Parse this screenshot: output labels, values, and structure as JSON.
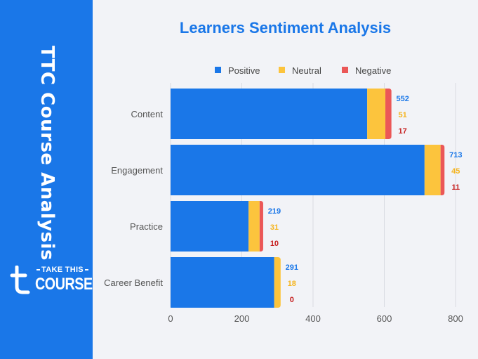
{
  "sidebar": {
    "title": "TTC Course Analysis",
    "logo_take": "TAKE THIS",
    "logo_course": "COURSE",
    "bg_color": "#1a77e8"
  },
  "chart_data": {
    "type": "bar",
    "orientation": "horizontal",
    "stacked": true,
    "title": "Learners Sentiment Analysis",
    "xlabel": "",
    "ylabel": "",
    "categories": [
      "Content",
      "Engagement",
      "Practice",
      "Career Benefit"
    ],
    "series": [
      {
        "name": "Positive",
        "values": [
          552,
          713,
          219,
          291
        ],
        "color": "#1a77e8",
        "label_color": "#1a77e8"
      },
      {
        "name": "Neutral",
        "values": [
          51,
          45,
          31,
          18
        ],
        "color": "#fcc43d",
        "label_color": "#f5b520"
      },
      {
        "name": "Negative",
        "values": [
          17,
          11,
          10,
          0
        ],
        "color": "#eb5757",
        "label_color": "#c62020"
      }
    ],
    "xlim": [
      0,
      800
    ],
    "xticks": [
      0,
      200,
      400,
      600,
      800
    ],
    "grid": true,
    "legend": "top"
  }
}
